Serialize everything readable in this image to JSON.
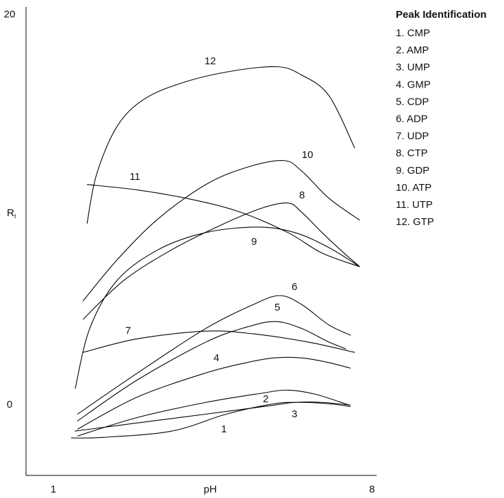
{
  "chart_data": {
    "type": "line",
    "x_label": "pH",
    "y_label": "R",
    "y_label_subscript": "t",
    "legend_title": "Peak Identification",
    "xlim": [
      0.4,
      8.1
    ],
    "ylim": [
      -3.6,
      20.4
    ],
    "xticks": [
      1,
      8
    ],
    "yticks": [
      0,
      20
    ],
    "grid": false,
    "series": [
      {
        "name": "1. CMP",
        "label": "1",
        "color": "#000000",
        "x": [
          1.39,
          2.1,
          3.6,
          4.8,
          5.85,
          6.45,
          7.05,
          7.53
        ],
        "values": [
          -1.68,
          -1.65,
          -1.33,
          -0.46,
          0.07,
          0.14,
          0.07,
          -0.07
        ]
      },
      {
        "name": "2. AMP",
        "label": "2",
        "color": "#000000",
        "x": [
          1.53,
          2.85,
          4.35,
          5.55,
          6.15,
          6.75,
          7.5
        ],
        "values": [
          -1.58,
          -0.63,
          0.14,
          0.6,
          0.77,
          0.56,
          0.0
        ]
      },
      {
        "name": "3. UMP",
        "label": "3",
        "color": "#000000",
        "x": [
          1.47,
          2.85,
          4.35,
          5.85,
          6.3,
          6.9,
          7.53
        ],
        "values": [
          -1.33,
          -0.91,
          -0.46,
          0.0,
          0.14,
          0.14,
          0.0
        ]
      },
      {
        "name": "4. GMP",
        "label": "4",
        "color": "#000000",
        "x": [
          1.53,
          2.85,
          4.35,
          5.25,
          5.85,
          6.45,
          7.05,
          7.53
        ],
        "values": [
          -1.23,
          0.42,
          1.65,
          2.18,
          2.42,
          2.42,
          2.18,
          1.89
        ]
      },
      {
        "name": "5. CDP",
        "label": "5",
        "color": "#000000",
        "x": [
          1.53,
          2.85,
          4.35,
          5.25,
          5.88,
          6.45,
          7.05,
          7.43
        ],
        "values": [
          -0.81,
          1.3,
          3.23,
          4.0,
          4.28,
          3.93,
          3.23,
          2.88
        ]
      },
      {
        "name": "6. ADP",
        "label": "6",
        "color": "#000000",
        "x": [
          1.53,
          2.85,
          4.35,
          5.4,
          5.97,
          6.45,
          7.05,
          7.53
        ],
        "values": [
          -0.46,
          1.65,
          3.93,
          5.16,
          5.61,
          5.16,
          4.11,
          3.58
        ]
      },
      {
        "name": "7. UDP",
        "label": "7",
        "color": "#000000",
        "x": [
          1.65,
          2.85,
          4.35,
          5.4,
          6.6,
          7.62
        ],
        "values": [
          2.7,
          3.4,
          3.79,
          3.65,
          3.23,
          2.7
        ]
      },
      {
        "name": "8. CTP",
        "label": "8",
        "color": "#000000",
        "x": [
          1.65,
          2.55,
          3.6,
          4.65,
          5.55,
          6.15,
          6.45,
          6.9,
          7.35,
          7.73
        ],
        "values": [
          4.39,
          6.39,
          7.96,
          9.19,
          10.07,
          10.35,
          9.89,
          8.84,
          7.86,
          7.09
        ]
      },
      {
        "name": "9. GDP",
        "label": "9",
        "color": "#000000",
        "x": [
          1.48,
          1.8,
          2.4,
          3.3,
          4.35,
          5.48,
          6.3,
          7.05,
          7.73
        ],
        "values": [
          0.84,
          3.93,
          6.39,
          7.96,
          8.84,
          9.12,
          8.84,
          8.07,
          7.09
        ]
      },
      {
        "name": "10. ATP",
        "label": "10",
        "color": "#000000",
        "x": [
          1.65,
          2.4,
          3.3,
          4.35,
          5.25,
          6.05,
          6.45,
          7.05,
          7.73
        ],
        "values": [
          5.33,
          7.44,
          9.54,
          11.3,
          12.18,
          12.53,
          12.0,
          10.6,
          9.47
        ]
      },
      {
        "name": "11. UTP",
        "label": "11",
        "color": "#000000",
        "x": [
          1.74,
          2.85,
          4.05,
          5.1,
          6.15,
          6.9,
          7.73
        ],
        "values": [
          11.3,
          11.02,
          10.53,
          9.89,
          8.84,
          7.79,
          7.09
        ]
      },
      {
        "name": "12. GTP",
        "label": "12",
        "color": "#000000",
        "x": [
          1.74,
          1.95,
          2.4,
          3.0,
          3.9,
          4.95,
          5.93,
          6.45,
          7.05,
          7.62
        ],
        "values": [
          9.3,
          11.82,
          14.28,
          15.68,
          16.56,
          17.12,
          17.33,
          16.91,
          15.86,
          13.16
        ]
      }
    ]
  }
}
